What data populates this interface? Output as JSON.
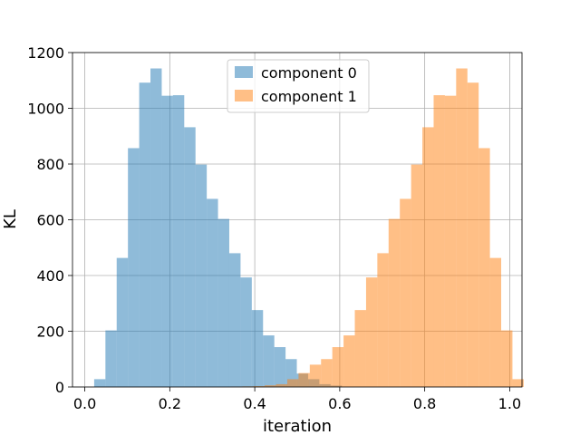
{
  "chart_data": {
    "type": "bar",
    "xlabel": "iteration",
    "ylabel": "KL",
    "xlim": [
      -0.029,
      1.029
    ],
    "ylim": [
      0,
      1200
    ],
    "grid": true,
    "legend_position": "top-center",
    "x_ticks": [
      0.0,
      0.2,
      0.4,
      0.6,
      0.8,
      1.0
    ],
    "x_tick_labels": [
      "0.0",
      "0.2",
      "0.4",
      "0.6",
      "0.8",
      "1.0"
    ],
    "y_ticks": [
      0,
      200,
      400,
      600,
      800,
      1000,
      1200
    ],
    "y_tick_labels": [
      "0",
      "200",
      "400",
      "600",
      "800",
      "1000",
      "1200"
    ],
    "series": [
      {
        "name": "component 0",
        "color": "#1f77b4",
        "alpha": 0.5,
        "bin_start": 0.022,
        "bin_width": 0.0265,
        "counts": [
          28,
          203,
          463,
          857,
          1092,
          1143,
          1045,
          1047,
          932,
          798,
          675,
          603,
          480,
          393,
          276,
          185,
          143,
          100,
          48,
          28,
          10,
          5
        ]
      },
      {
        "name": "component 1",
        "color": "#ff7f0e",
        "alpha": 0.5,
        "bin_start": 0.026,
        "bin_width": 0.0265,
        "counts": [
          0,
          0,
          0,
          0,
          0,
          0,
          0,
          0,
          0,
          0,
          0,
          0,
          1,
          2,
          3,
          6,
          10,
          28,
          50,
          80,
          100,
          143,
          185,
          276,
          393,
          480,
          603,
          675,
          798,
          932,
          1047,
          1045,
          1143,
          1092,
          857,
          463,
          203,
          28
        ]
      }
    ]
  }
}
